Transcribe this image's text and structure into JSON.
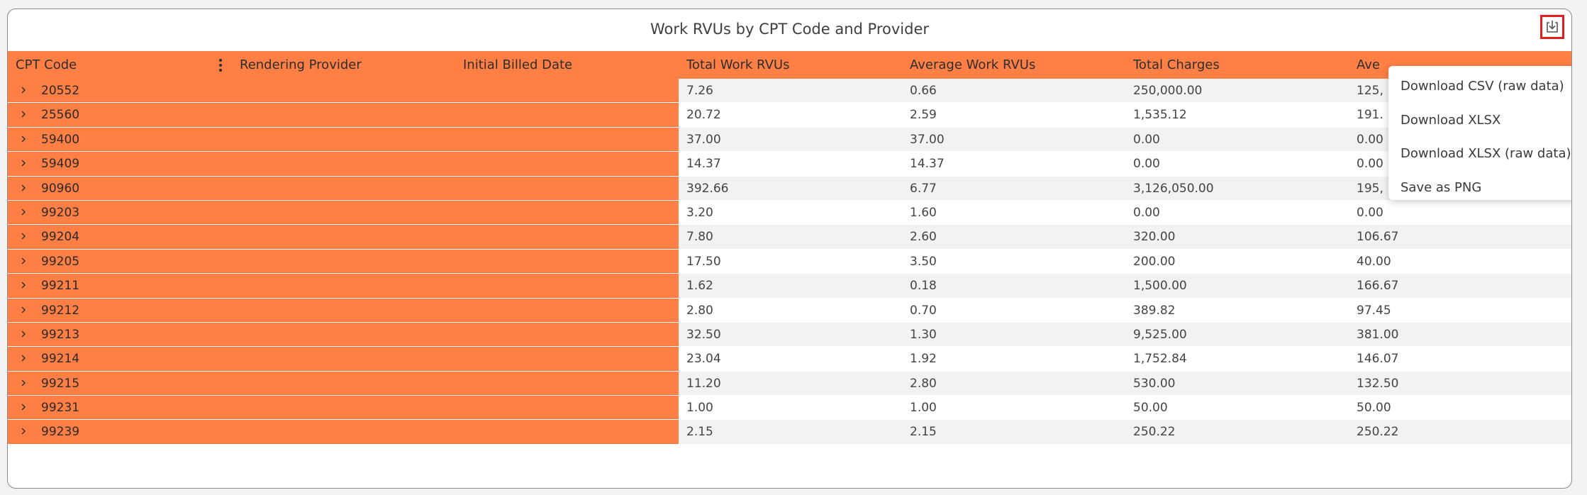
{
  "title": "Work RVUs by CPT Code and Provider",
  "download_icon": "download-tray-icon",
  "columns": {
    "cpt": "CPT Code",
    "provider": "Rendering Provider",
    "billed": "Initial Billed Date",
    "total_rvu": "Total Work RVUs",
    "avg_rvu": "Average Work RVUs",
    "charges": "Total Charges",
    "avg_charges": "Ave"
  },
  "rows": [
    {
      "code": "20552",
      "total_rvu": "7.26",
      "avg_rvu": "0.66",
      "charges": "250,000.00",
      "avg_charges": "125,"
    },
    {
      "code": "25560",
      "total_rvu": "20.72",
      "avg_rvu": "2.59",
      "charges": "1,535.12",
      "avg_charges": "191."
    },
    {
      "code": "59400",
      "total_rvu": "37.00",
      "avg_rvu": "37.00",
      "charges": "0.00",
      "avg_charges": "0.00"
    },
    {
      "code": "59409",
      "total_rvu": "14.37",
      "avg_rvu": "14.37",
      "charges": "0.00",
      "avg_charges": "0.00"
    },
    {
      "code": "90960",
      "total_rvu": "392.66",
      "avg_rvu": "6.77",
      "charges": "3,126,050.00",
      "avg_charges": "195,"
    },
    {
      "code": "99203",
      "total_rvu": "3.20",
      "avg_rvu": "1.60",
      "charges": "0.00",
      "avg_charges": "0.00"
    },
    {
      "code": "99204",
      "total_rvu": "7.80",
      "avg_rvu": "2.60",
      "charges": "320.00",
      "avg_charges": "106.67"
    },
    {
      "code": "99205",
      "total_rvu": "17.50",
      "avg_rvu": "3.50",
      "charges": "200.00",
      "avg_charges": "40.00"
    },
    {
      "code": "99211",
      "total_rvu": "1.62",
      "avg_rvu": "0.18",
      "charges": "1,500.00",
      "avg_charges": "166.67"
    },
    {
      "code": "99212",
      "total_rvu": "2.80",
      "avg_rvu": "0.70",
      "charges": "389.82",
      "avg_charges": "97.45"
    },
    {
      "code": "99213",
      "total_rvu": "32.50",
      "avg_rvu": "1.30",
      "charges": "9,525.00",
      "avg_charges": "381.00"
    },
    {
      "code": "99214",
      "total_rvu": "23.04",
      "avg_rvu": "1.92",
      "charges": "1,752.84",
      "avg_charges": "146.07"
    },
    {
      "code": "99215",
      "total_rvu": "11.20",
      "avg_rvu": "2.80",
      "charges": "530.00",
      "avg_charges": "132.50"
    },
    {
      "code": "99231",
      "total_rvu": "1.00",
      "avg_rvu": "1.00",
      "charges": "50.00",
      "avg_charges": "50.00"
    },
    {
      "code": "99239",
      "total_rvu": "2.15",
      "avg_rvu": "2.15",
      "charges": "250.22",
      "avg_charges": "250.22"
    }
  ],
  "menu": {
    "csv_raw": "Download CSV (raw data)",
    "xlsx": "Download XLSX",
    "xlsx_raw": "Download XLSX (raw data)",
    "png": "Save as PNG"
  },
  "colors": {
    "frozen_bg": "#ff7f45",
    "alt_row": "#f2f2f2",
    "highlight": "#e02020"
  }
}
